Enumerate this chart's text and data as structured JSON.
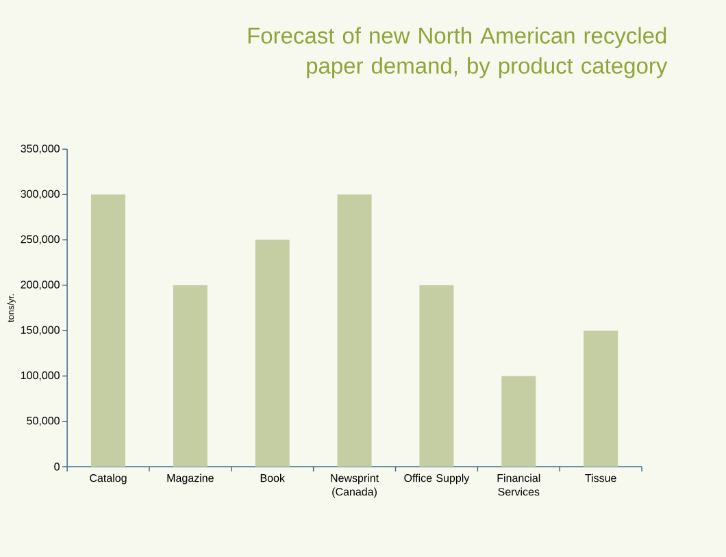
{
  "chart_data": {
    "type": "bar",
    "title": "Forecast of new North American recycled paper demand, by product category",
    "ylabel": "tons/yr.",
    "categories": [
      "Catalog",
      "Magazine",
      "Book",
      "Newsprint (Canada)",
      "Office Supply",
      "Financial Services",
      "Tissue"
    ],
    "values": [
      300000,
      200000,
      250000,
      300000,
      200000,
      100000,
      150000
    ],
    "color": "#c5cda3",
    "ylim": [
      0,
      350000
    ],
    "yticks": [
      {
        "value": 0,
        "label": "0"
      },
      {
        "value": 50000,
        "label": "50,000"
      },
      {
        "value": 100000,
        "label": "100,000"
      },
      {
        "value": 150000,
        "label": "150,000"
      },
      {
        "value": 200000,
        "label": "200,000"
      },
      {
        "value": 250000,
        "label": "250,000"
      },
      {
        "value": 300000,
        "label": "300,000"
      },
      {
        "value": 350000,
        "label": "350,000"
      }
    ],
    "grid": false
  }
}
